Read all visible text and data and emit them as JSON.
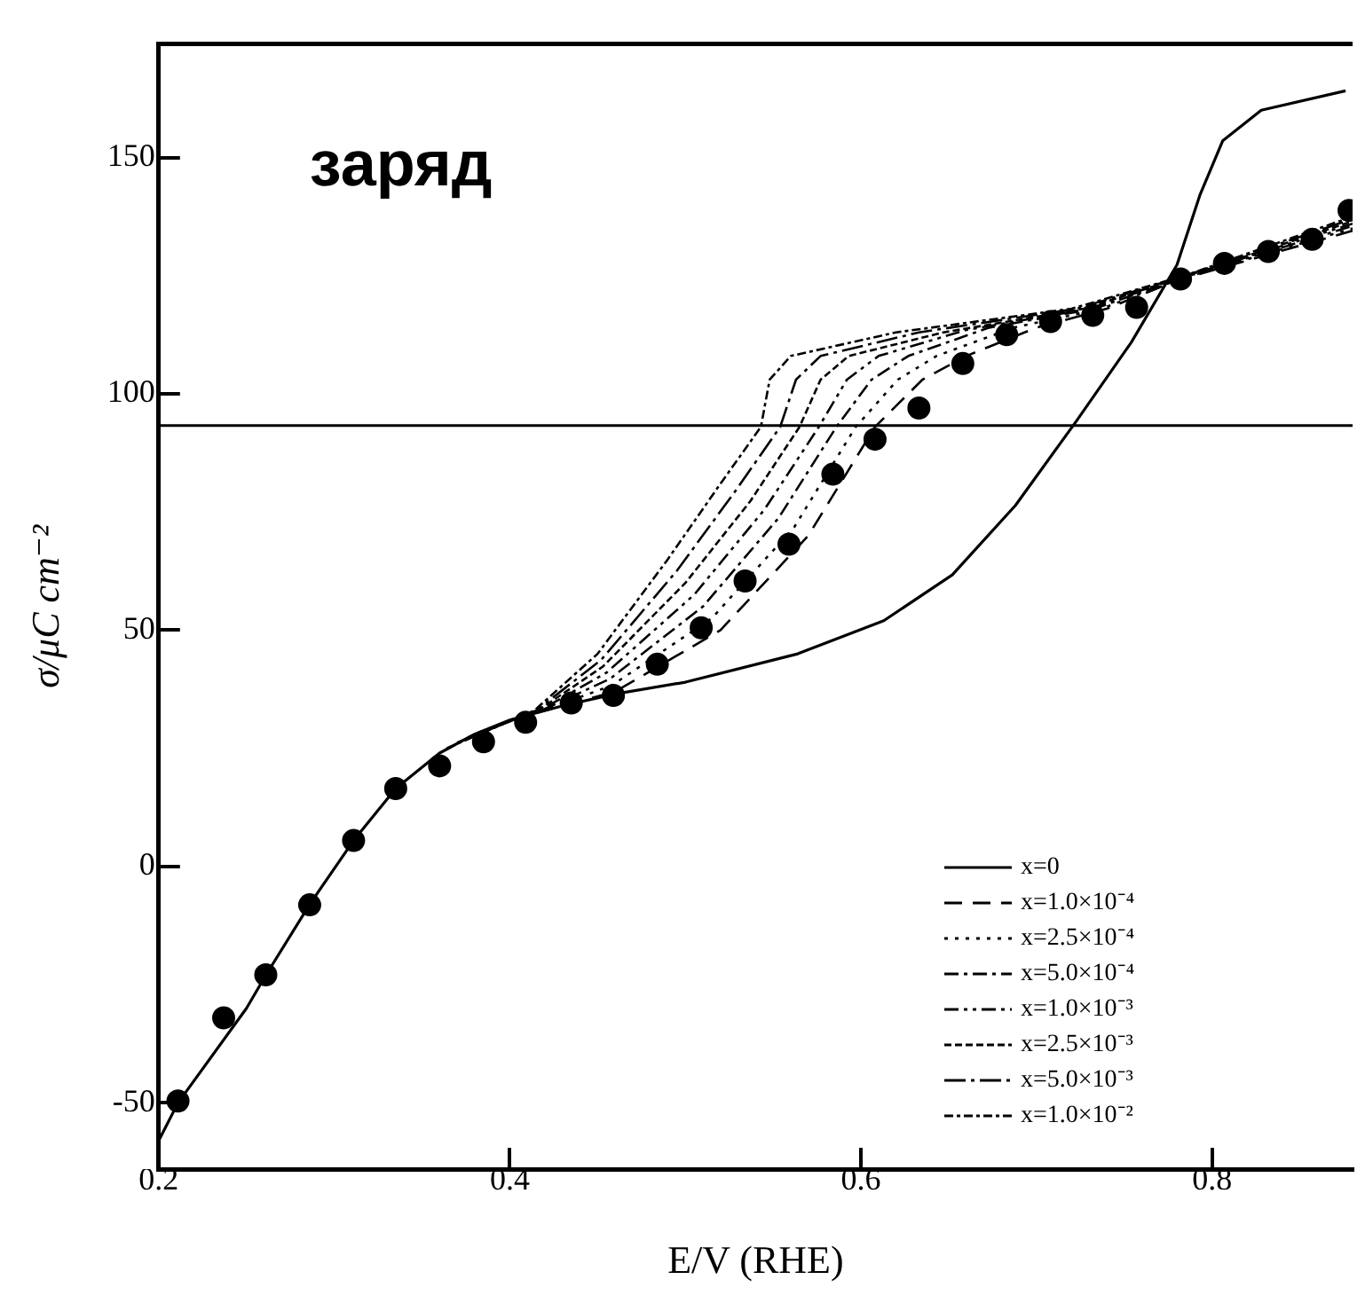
{
  "chart_data": {
    "type": "line",
    "xlabel": "E/V (RHE)",
    "ylabel": "σ/μC cm⁻²",
    "annotations": [
      "заряд"
    ],
    "xlim": [
      0.2,
      0.88
    ],
    "xticks": [
      0.2,
      0.4,
      0.6,
      0.8
    ],
    "ylim": [
      -64,
      174
    ],
    "yticks": [
      -50,
      0,
      50,
      100,
      150
    ],
    "grid": false,
    "legend": "bottom right",
    "marker": "none",
    "ref_lines": [
      {
        "axis": "y",
        "value": 93.3,
        "color": "#000000",
        "line_style": "solid"
      }
    ],
    "series": [
      {
        "name": "x=0",
        "color": "#000000",
        "line_style": "solid",
        "x": [
          0.2,
          0.211,
          0.25,
          0.261,
          0.286,
          0.311,
          0.335,
          0.36,
          0.38,
          0.4,
          0.43,
          0.46,
          0.5,
          0.564,
          0.613,
          0.652,
          0.688,
          0.723,
          0.754,
          0.78,
          0.793,
          0.806,
          0.828,
          0.876
        ],
        "values": [
          -58,
          -50,
          -30,
          -23,
          -8,
          5.5,
          16.5,
          24,
          28,
          31,
          34,
          36.5,
          39,
          45,
          52,
          61.7,
          76.4,
          94.4,
          110.9,
          127.3,
          142,
          153.5,
          160,
          164.1
        ]
      },
      {
        "name": "x=1.0×10⁻⁴",
        "color": "#000000",
        "line_style": "dashed",
        "x": [
          0.4,
          0.42,
          0.46,
          0.52,
          0.57,
          0.608,
          0.635,
          0.66,
          0.7,
          0.74,
          0.78,
          0.88
        ],
        "values": [
          31,
          33,
          37,
          50,
          70,
          93,
          103,
          108,
          114,
          118,
          124,
          134.5
        ]
      },
      {
        "name": "x=2.5×10⁻⁴",
        "color": "#000000",
        "line_style": "dotted",
        "x": [
          0.394,
          0.419,
          0.458,
          0.515,
          0.562,
          0.597,
          0.621,
          0.643,
          0.687,
          0.737,
          0.781,
          0.88
        ],
        "values": [
          30.1,
          33,
          38.3,
          52.5,
          71.8,
          93,
          103,
          108,
          114,
          118,
          124.2,
          135
        ]
      },
      {
        "name": "x=5.0×10⁻⁴",
        "color": "#000000",
        "line_style": "dashdot",
        "x": [
          0.388,
          0.418,
          0.457,
          0.51,
          0.553,
          0.586,
          0.606,
          0.627,
          0.673,
          0.733,
          0.782,
          0.88
        ],
        "values": [
          29.2,
          33,
          39.7,
          55,
          73.7,
          93,
          103,
          108,
          114,
          118,
          124.4,
          135.5
        ]
      },
      {
        "name": "x=1.0×10⁻³",
        "color": "#000000",
        "line_style": "dashdotdot",
        "x": [
          0.382,
          0.417,
          0.455,
          0.505,
          0.545,
          0.576,
          0.592,
          0.61,
          0.66,
          0.73,
          0.783,
          0.88
        ],
        "values": [
          28.3,
          33,
          41,
          57.5,
          75.5,
          93,
          103,
          108,
          113.5,
          118,
          124.6,
          136
        ]
      },
      {
        "name": "x=2.5×10⁻³",
        "color": "#000000",
        "line_style": "shortdash",
        "x": [
          0.376,
          0.416,
          0.453,
          0.5,
          0.537,
          0.565,
          0.577,
          0.593,
          0.647,
          0.727,
          0.784,
          0.88
        ],
        "values": [
          27.3,
          33,
          42.3,
          60,
          77.3,
          93,
          103,
          108,
          113,
          118,
          124.8,
          136.5
        ]
      },
      {
        "name": "x=5.0×10⁻³",
        "color": "#000000",
        "line_style": "longdashdot",
        "x": [
          0.37,
          0.415,
          0.452,
          0.495,
          0.528,
          0.554,
          0.563,
          0.577,
          0.633,
          0.723,
          0.785,
          0.88
        ],
        "values": [
          26.2,
          33,
          43.7,
          62.5,
          79.2,
          93,
          103,
          108,
          113,
          118,
          125,
          137
        ]
      },
      {
        "name": "x=1.0×10⁻²",
        "color": "#000000",
        "line_style": "densedashdot",
        "x": [
          0.364,
          0.414,
          0.45,
          0.49,
          0.52,
          0.543,
          0.548,
          0.56,
          0.62,
          0.72,
          0.786,
          0.88
        ],
        "values": [
          25,
          33,
          45,
          65,
          81,
          93,
          103,
          108,
          113,
          118,
          125.2,
          137.5
        ]
      },
      {
        "type": "scatter",
        "color": "#000000",
        "marker": "circle",
        "x": [
          0.211,
          0.237,
          0.261,
          0.286,
          0.311,
          0.335,
          0.36,
          0.385,
          0.409,
          0.435,
          0.459,
          0.484,
          0.509,
          0.534,
          0.559,
          0.584,
          0.608,
          0.633,
          0.658,
          0.683,
          0.708,
          0.732,
          0.757,
          0.782,
          0.807,
          0.832,
          0.857,
          0.878
        ],
        "values": [
          -49.6,
          -32,
          -22.9,
          -8.1,
          5.5,
          16.5,
          21.3,
          26.4,
          30.5,
          34.6,
          36.2,
          42.8,
          50.5,
          60.4,
          68.2,
          83,
          90.4,
          97,
          106.4,
          112.5,
          115.3,
          116.6,
          118.3,
          124.3,
          127.6,
          130.1,
          132.7,
          138.8
        ]
      }
    ]
  }
}
